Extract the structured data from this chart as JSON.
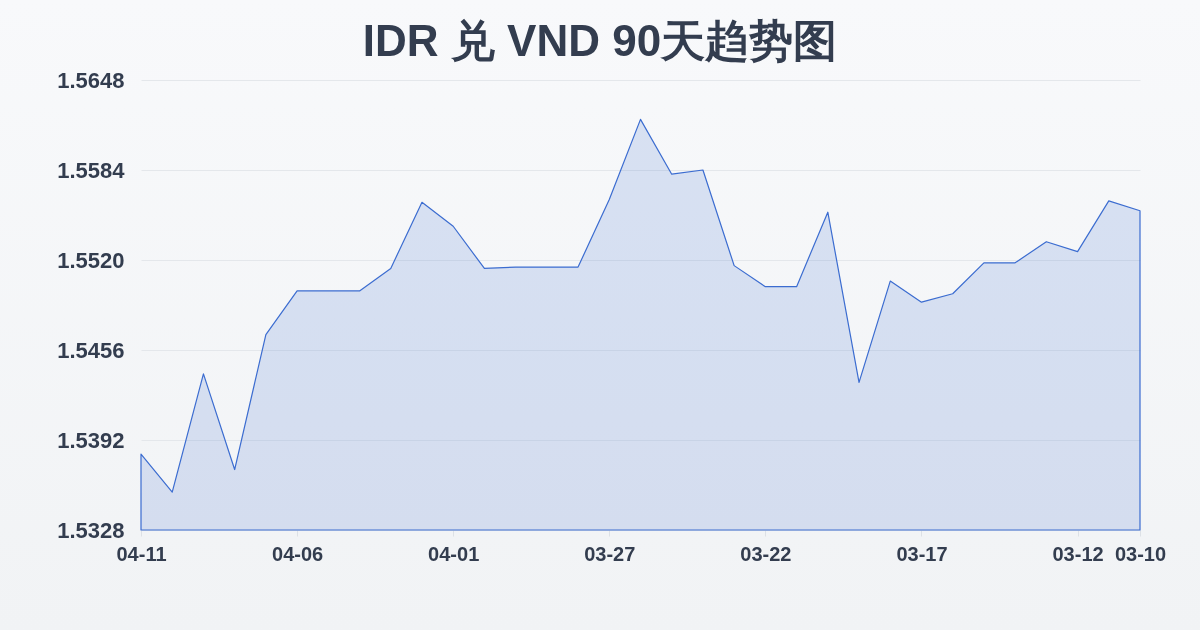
{
  "chart_data": {
    "type": "area",
    "title": "IDR 兑 VND 90天趋势图",
    "categories": [
      "04-11",
      null,
      null,
      null,
      null,
      "04-06",
      null,
      null,
      null,
      null,
      "04-01",
      null,
      null,
      null,
      null,
      "03-27",
      null,
      null,
      null,
      null,
      "03-22",
      null,
      null,
      null,
      null,
      "03-17",
      null,
      null,
      null,
      null,
      "03-12",
      null,
      "03-10"
    ],
    "values": [
      1.5382,
      1.5355,
      1.5439,
      1.5371,
      1.5467,
      1.5498,
      1.5498,
      1.5498,
      1.5514,
      1.5561,
      1.5544,
      1.5514,
      1.5515,
      1.5515,
      1.5515,
      1.5563,
      1.562,
      1.5581,
      1.5584,
      1.5516,
      1.5501,
      1.5501,
      1.5554,
      1.5433,
      1.5505,
      1.549,
      1.5496,
      1.5518,
      1.5518,
      1.5533,
      1.5526,
      1.5562,
      1.5555
    ],
    "color": "#3b6cd0",
    "ylim": [
      1.5328,
      1.5648
    ],
    "yticks": [
      1.5328,
      1.5392,
      1.5456,
      {
        "value": 1.552,
        "label": "1.5520"
      },
      1.5584,
      1.5648
    ],
    "grid": "y"
  }
}
